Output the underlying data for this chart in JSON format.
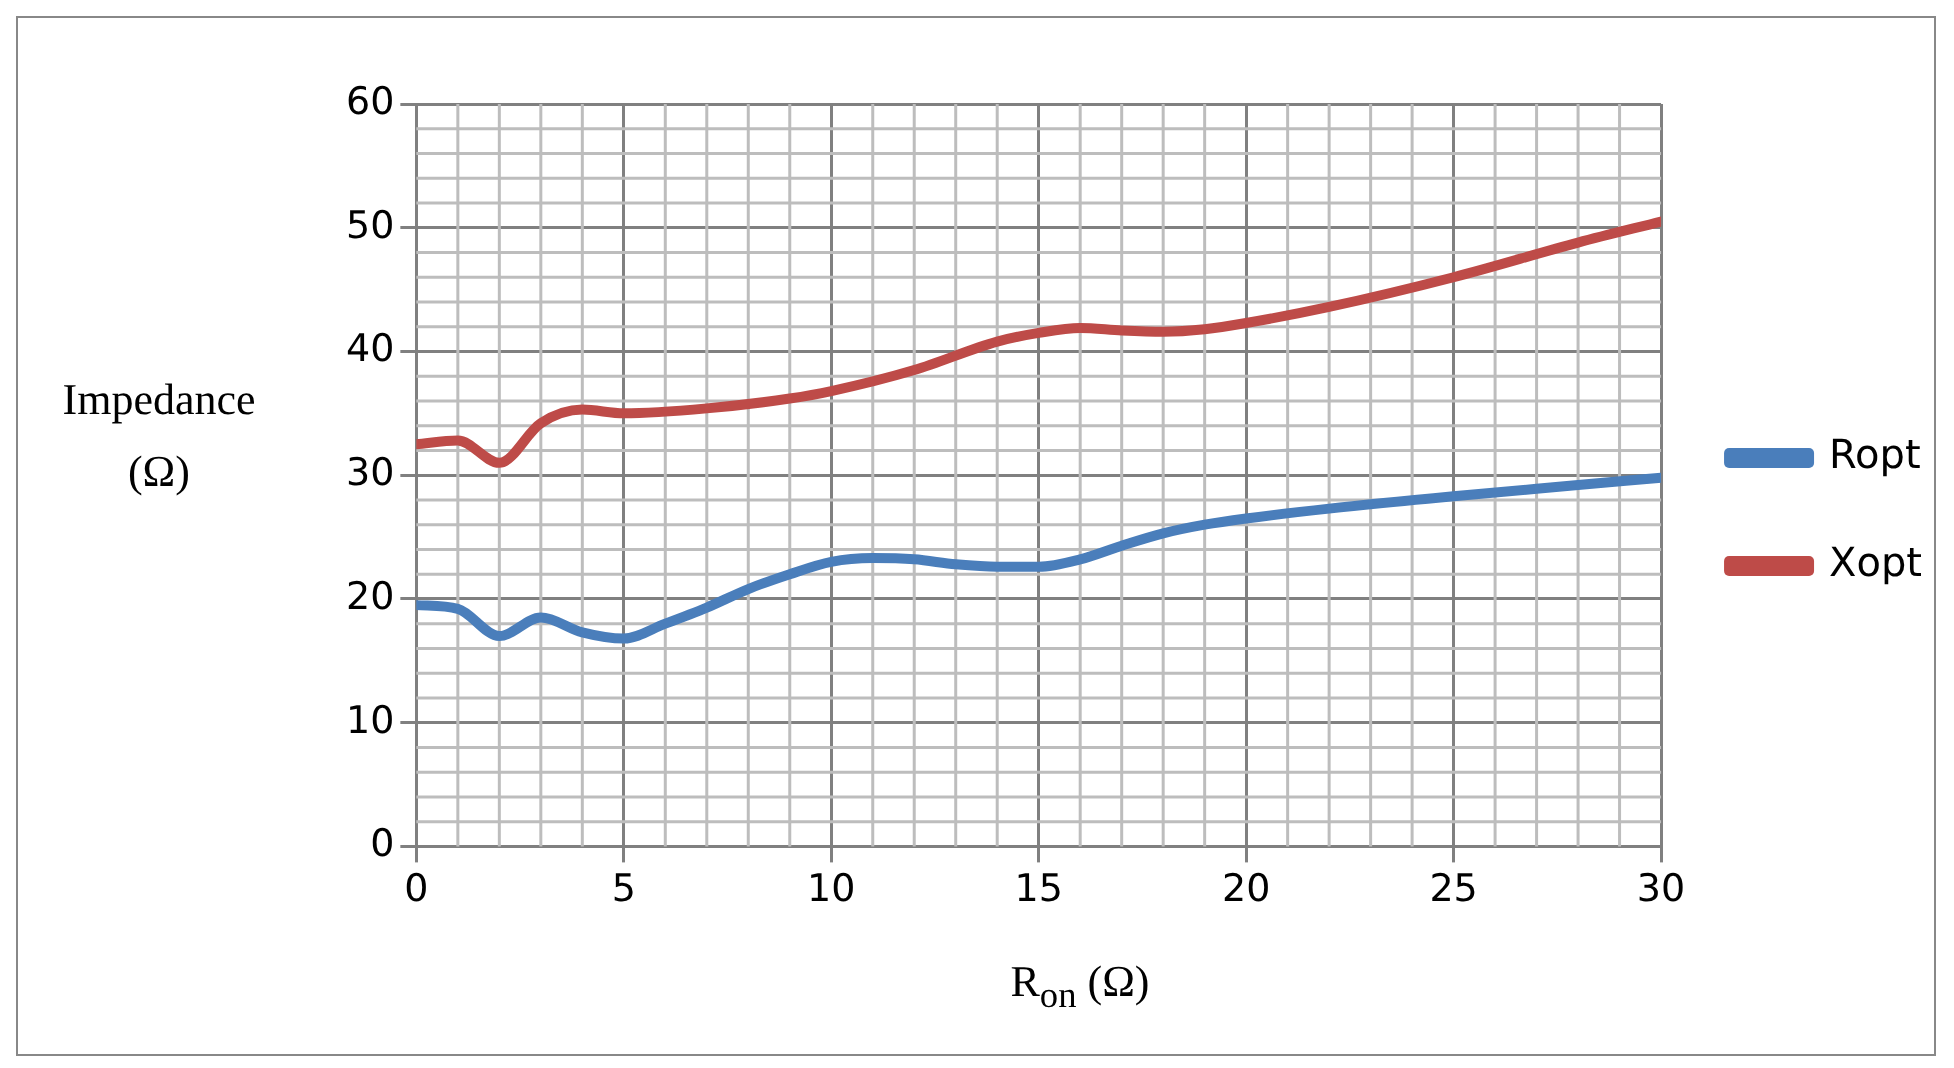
{
  "chart_data": {
    "type": "line",
    "xlabel": "R$_{on}$ (Ω)",
    "ylabel": "Impedance (Ω)",
    "xlim": [
      0,
      30
    ],
    "xticks": [
      0,
      5,
      10,
      15,
      20,
      25,
      30
    ],
    "ylim": [
      0,
      60
    ],
    "yticks": [
      0,
      10,
      20,
      30,
      40,
      50,
      60
    ],
    "grid": true,
    "legend": "right",
    "marker": "none",
    "line_style": "solid",
    "series": [
      {
        "name": "Ropt",
        "color": "#4a7ebb",
        "x": [
          0,
          1,
          2,
          3,
          4,
          5,
          6,
          7,
          8,
          9,
          10,
          11,
          12,
          13,
          14,
          15,
          16,
          17,
          18,
          19,
          20,
          22,
          25,
          28,
          30
        ],
        "values": [
          19.5,
          19.2,
          17,
          18.5,
          17.3,
          16.8,
          18,
          19.3,
          20.8,
          22,
          23,
          23.3,
          23.2,
          22.8,
          22.6,
          22.6,
          23.2,
          24.3,
          25.3,
          26,
          26.5,
          27.3,
          28.3,
          29.2,
          29.8
        ]
      },
      {
        "name": "Xopt",
        "color": "#be4b48",
        "x": [
          0,
          1,
          2,
          3,
          4,
          5,
          7,
          9,
          10,
          12,
          14,
          15,
          16,
          17,
          18,
          19,
          20,
          22,
          25,
          28,
          30
        ],
        "values": [
          32.5,
          32.8,
          31,
          34.2,
          35.3,
          35,
          35.4,
          36.2,
          36.8,
          38.5,
          40.8,
          41.5,
          41.9,
          41.7,
          41.6,
          41.8,
          42.3,
          43.6,
          46,
          48.8,
          50.5
        ]
      }
    ]
  }
}
